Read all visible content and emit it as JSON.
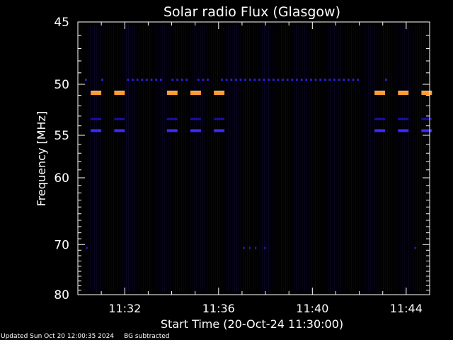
{
  "chart_data": {
    "type": "heatmap",
    "title": "Solar radio Flux (Glasgow)",
    "xlabel": "Start Time (20-Oct-24 11:30:00)",
    "ylabel": "Frequency [MHz]",
    "x_range_minutes": [
      0,
      15
    ],
    "x_ticks": [
      {
        "minute": 2,
        "label": "11:32"
      },
      {
        "minute": 6,
        "label": "11:36"
      },
      {
        "minute": 10,
        "label": "11:40"
      },
      {
        "minute": 14,
        "label": "11:44"
      }
    ],
    "y_scale": "reciprocal",
    "y_range_mhz": [
      45,
      80
    ],
    "y_ticks": [
      45,
      50,
      55,
      60,
      70,
      80
    ],
    "background_color": "#000000",
    "frame_color": "#ffffff",
    "emission_bands": [
      {
        "freq_mhz": 50.8,
        "color": "#ff9a30",
        "intensity": "high",
        "start_minute": 0.55,
        "end_minute": 14.95,
        "minute_on": [
          0.55,
          1.55,
          3.8,
          4.8,
          5.8,
          12.65,
          13.65,
          14.65
        ],
        "duration": 0.45
      },
      {
        "freq_mhz": 54.5,
        "color": "#3a2bff",
        "intensity": "medium",
        "minute_on": [
          0.55,
          1.55,
          3.8,
          4.8,
          5.8,
          12.65,
          13.65,
          14.65
        ],
        "duration": 0.45
      },
      {
        "freq_mhz": 53.3,
        "color": "#1a10a8",
        "intensity": "low",
        "minute_on": [
          0.55,
          1.55,
          3.8,
          4.8,
          5.8,
          12.65,
          13.65,
          14.65
        ],
        "duration": 0.45
      },
      {
        "freq_mhz": 49.6,
        "color": "#2e1fe0",
        "intensity": "low",
        "minute_on": [
          0.3,
          1.0,
          2.1,
          2.3,
          2.5,
          2.7,
          2.9,
          3.1,
          3.3,
          3.5,
          4.0,
          4.2,
          4.4,
          4.6,
          5.1,
          5.3,
          5.5,
          6.1,
          6.3,
          6.5,
          6.7,
          6.9,
          7.1,
          7.3,
          7.5,
          7.7,
          7.9,
          8.1,
          8.3,
          8.5,
          8.7,
          8.9,
          9.1,
          9.3,
          9.5,
          9.7,
          9.9,
          10.1,
          10.3,
          10.5,
          10.7,
          10.9,
          11.1,
          11.3,
          11.5,
          11.7,
          11.9,
          13.1
        ],
        "duration": 0.08
      },
      {
        "freq_mhz": 70.6,
        "color": "#2e1fe0",
        "intensity": "low",
        "minute_on": [
          0.35,
          7.05,
          7.3,
          7.55,
          7.95,
          14.35
        ],
        "duration": 0.06
      }
    ]
  },
  "footer": {
    "updated": "Updated Sun Oct 20 12:00:35 2024",
    "note": "BG subtracted"
  }
}
